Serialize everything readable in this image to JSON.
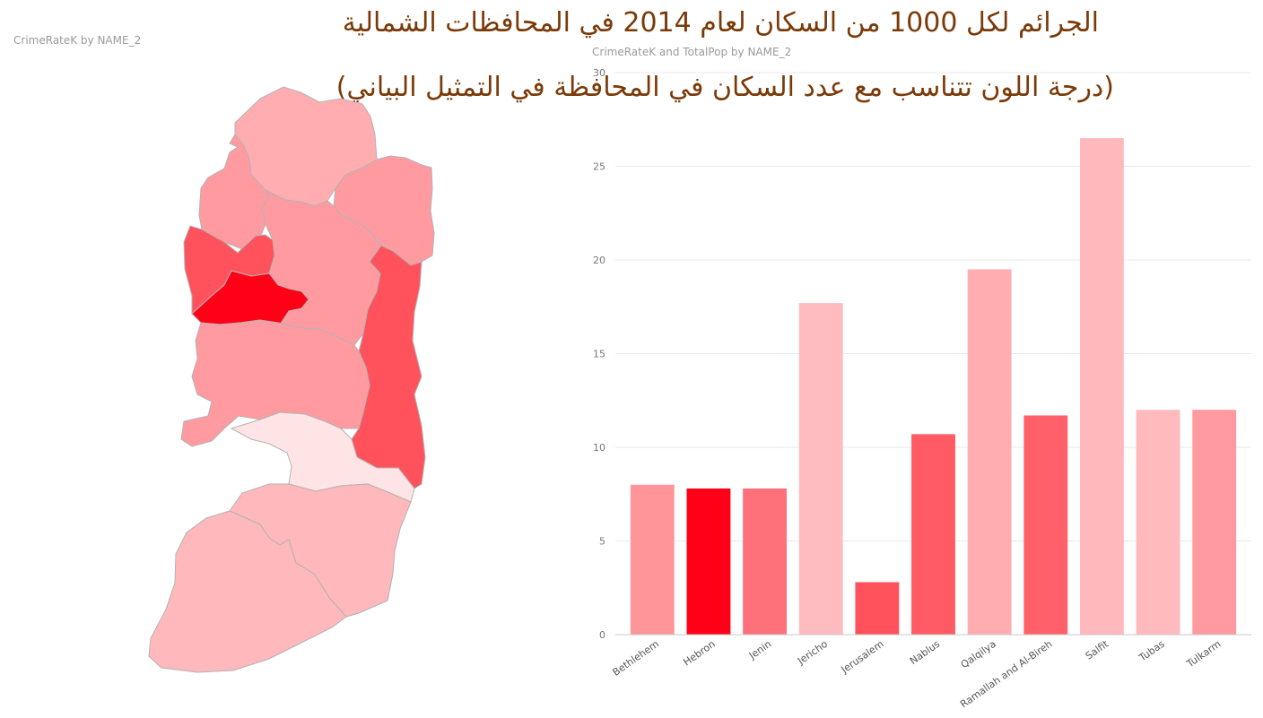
{
  "map": {
    "title": "CrimeRateK by NAME_2"
  },
  "headline": {
    "title": "الجرائم لكل 1000 من السكان لعام 2014 في المحافظات الشمالية",
    "subtitle": "(درجة اللون تتناسب مع عدد السكان في المحافظة في التمثيل البياني)"
  },
  "colors": {
    "Bethlehem": "#ff9499",
    "Hebron": "#ff0016",
    "Jenin": "#ff717a",
    "Jericho": "#ffbcc0",
    "Jerusalem": "#ff525c",
    "Nablus": "#ff5b65",
    "Qalqilya": "#ffadb1",
    "Ramallah and Al-Bireh": "#ff6069",
    "Salfit": "#ffb8bc",
    "Tubas": "#ffbabd",
    "Tulkarm": "#ff9aa0",
    "jerichoMap": "#ffe4e6"
  },
  "chart_data": {
    "type": "bar",
    "title": "CrimeRateK and TotalPop by NAME_2",
    "xlabel": "",
    "ylabel": "",
    "ylim": [
      0,
      30
    ],
    "yticks": [
      0,
      5,
      10,
      15,
      20,
      25,
      30
    ],
    "grid": true,
    "categories": [
      "Bethlehem",
      "Hebron",
      "Jenin",
      "Jericho",
      "Jerusalem",
      "Nablus",
      "Qalqilya",
      "Ramallah and Al-Bireh",
      "Salfit",
      "Tubas",
      "Tulkarm"
    ],
    "values": [
      8.0,
      7.8,
      7.8,
      17.7,
      2.8,
      10.7,
      19.5,
      11.7,
      26.5,
      12.0,
      12.0
    ]
  }
}
